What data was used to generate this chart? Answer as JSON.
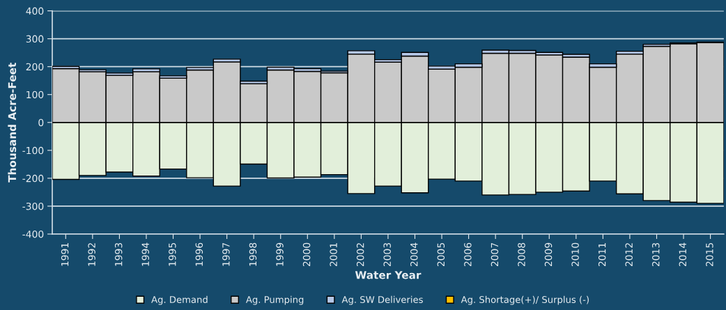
{
  "chart_data": {
    "type": "bar",
    "stacked": true,
    "xlabel": "Water Year",
    "ylabel": "Thousand Acre-Feet",
    "categories": [
      "1991",
      "1992",
      "1993",
      "1994",
      "1995",
      "1996",
      "1997",
      "1998",
      "1999",
      "2000",
      "2001",
      "2002",
      "2003",
      "2004",
      "2005",
      "2006",
      "2007",
      "2008",
      "2009",
      "2010",
      "2011",
      "2012",
      "2013",
      "2014",
      "2015"
    ],
    "series": [
      {
        "name": "Ag. Demand",
        "color": "#e2efda",
        "values": [
          -204,
          -190,
          -178,
          -192,
          -167,
          -198,
          -228,
          -149,
          -199,
          -196,
          -187,
          -255,
          -228,
          -252,
          -203,
          -210,
          -260,
          -258,
          -250,
          -246,
          -210,
          -256,
          -280,
          -286,
          -290
        ]
      },
      {
        "name": "Ag. Pumping",
        "color": "#c9c9c9",
        "values": [
          193,
          182,
          169,
          182,
          159,
          188,
          217,
          139,
          188,
          183,
          178,
          245,
          216,
          238,
          191,
          198,
          248,
          248,
          242,
          234,
          198,
          245,
          273,
          282,
          286
        ]
      },
      {
        "name": "Ag. SW Deliveries",
        "color": "#b4c7e7",
        "values": [
          8,
          7,
          8,
          10,
          8,
          9,
          10,
          9,
          10,
          10,
          6,
          12,
          9,
          13,
          11,
          12,
          11,
          10,
          9,
          10,
          12,
          10,
          7,
          3,
          2
        ]
      },
      {
        "name": "Ag. Shortage(+)/ Surplus (-)",
        "color": "#ffc000",
        "values": [
          null,
          null,
          null,
          null,
          null,
          null,
          null,
          null,
          null,
          null,
          null,
          null,
          null,
          null,
          null,
          null,
          null,
          null,
          null,
          null,
          null,
          null,
          null,
          null,
          null
        ]
      }
    ],
    "ylim": [
      -400,
      400
    ],
    "yticks": [
      -400,
      -300,
      -200,
      -100,
      0,
      100,
      200,
      300,
      400
    ],
    "grid": "y",
    "legend": "bottom"
  }
}
